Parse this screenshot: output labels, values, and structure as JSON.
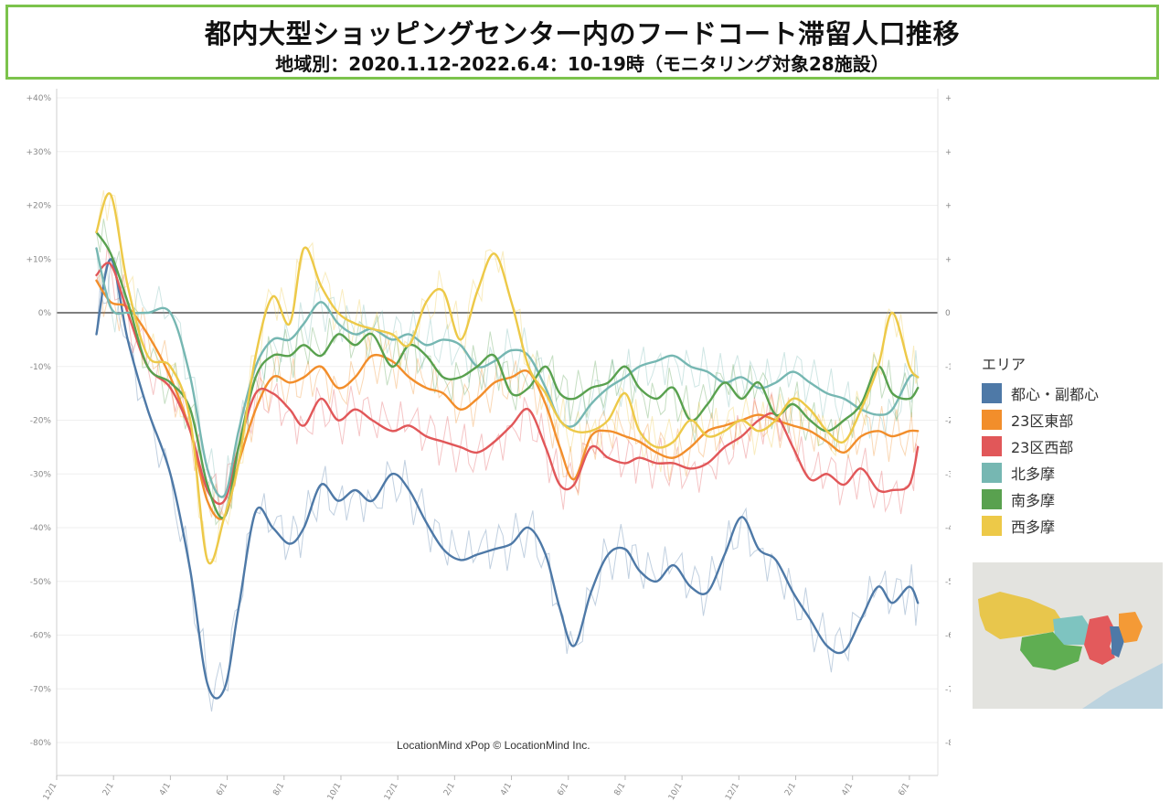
{
  "header": {
    "title": "都内大型ショッピングセンター内のフードコート滞留人口推移",
    "subtitle": "地域別：2020.1.12-2022.6.4：10-19時（モニタリング対象28施設）"
  },
  "credit": "LocationMind xPop © LocationMind Inc.",
  "legend": {
    "title": "エリア",
    "items": [
      {
        "label": "都心・副都心",
        "color": "#4e79a7"
      },
      {
        "label": "23区東部",
        "color": "#f28e2b"
      },
      {
        "label": "23区西部",
        "color": "#e15759"
      },
      {
        "label": "北多摩",
        "color": "#76b7b2"
      },
      {
        "label": "南多摩",
        "color": "#59a14f"
      },
      {
        "label": "西多摩",
        "color": "#edc948"
      }
    ]
  },
  "chart_data": {
    "type": "line",
    "ylim": [
      -80,
      40
    ],
    "y_ticks": [
      "+40%",
      "+30%",
      "+20%",
      "+10%",
      "0%",
      "-10%",
      "-20%",
      "-30%",
      "-40%",
      "-50%",
      "-60%",
      "-70%",
      "-80%"
    ],
    "x_ticks": [
      "12/1",
      "2/1",
      "4/1",
      "6/1",
      "8/1",
      "10/1",
      "12/1",
      "2/1",
      "4/1",
      "6/1",
      "8/1",
      "10/1",
      "12/1",
      "2/1",
      "4/1",
      "6/1"
    ],
    "x_unit": "month index from 2019-12-01 (0 = 12/1/2019, 30 = 6/1/2022)",
    "xlim": [
      0,
      31
    ],
    "zero_line": true,
    "series": [
      {
        "name": "都心・副都心",
        "color": "#4e79a7",
        "points": [
          [
            1.4,
            -4
          ],
          [
            1.9,
            10
          ],
          [
            2.5,
            -5
          ],
          [
            3.2,
            -18
          ],
          [
            4.0,
            -30
          ],
          [
            4.7,
            -48
          ],
          [
            5.3,
            -69
          ],
          [
            5.9,
            -70
          ],
          [
            6.4,
            -55
          ],
          [
            7.0,
            -37
          ],
          [
            7.6,
            -40
          ],
          [
            8.2,
            -43
          ],
          [
            8.7,
            -40
          ],
          [
            9.3,
            -32
          ],
          [
            9.9,
            -35
          ],
          [
            10.5,
            -33
          ],
          [
            11.1,
            -35
          ],
          [
            11.8,
            -30
          ],
          [
            12.4,
            -33
          ],
          [
            13.0,
            -39
          ],
          [
            13.6,
            -44
          ],
          [
            14.2,
            -46
          ],
          [
            14.8,
            -45
          ],
          [
            15.4,
            -44
          ],
          [
            16.0,
            -43
          ],
          [
            16.6,
            -40
          ],
          [
            17.2,
            -45
          ],
          [
            17.7,
            -55
          ],
          [
            18.2,
            -62
          ],
          [
            18.8,
            -52
          ],
          [
            19.4,
            -45
          ],
          [
            20.0,
            -44
          ],
          [
            20.5,
            -48
          ],
          [
            21.1,
            -50
          ],
          [
            21.7,
            -47
          ],
          [
            22.3,
            -51
          ],
          [
            22.9,
            -52
          ],
          [
            23.5,
            -45
          ],
          [
            24.1,
            -38
          ],
          [
            24.7,
            -44
          ],
          [
            25.3,
            -46
          ],
          [
            25.9,
            -52
          ],
          [
            26.5,
            -57
          ],
          [
            27.1,
            -62
          ],
          [
            27.7,
            -63
          ],
          [
            28.3,
            -57
          ],
          [
            28.9,
            -51
          ],
          [
            29.4,
            -54
          ],
          [
            30.0,
            -51
          ],
          [
            30.3,
            -54
          ]
        ]
      },
      {
        "name": "23区東部",
        "color": "#f28e2b",
        "points": [
          [
            1.4,
            6
          ],
          [
            1.9,
            2
          ],
          [
            2.5,
            1
          ],
          [
            3.2,
            -4
          ],
          [
            4.0,
            -12
          ],
          [
            4.7,
            -22
          ],
          [
            5.3,
            -35
          ],
          [
            5.9,
            -38
          ],
          [
            6.4,
            -28
          ],
          [
            7.0,
            -18
          ],
          [
            7.6,
            -12
          ],
          [
            8.2,
            -13
          ],
          [
            8.7,
            -12
          ],
          [
            9.3,
            -10
          ],
          [
            9.9,
            -14
          ],
          [
            10.5,
            -12
          ],
          [
            11.1,
            -8
          ],
          [
            11.8,
            -9
          ],
          [
            12.4,
            -12
          ],
          [
            13.0,
            -14
          ],
          [
            13.6,
            -15
          ],
          [
            14.2,
            -18
          ],
          [
            14.8,
            -16
          ],
          [
            15.4,
            -13
          ],
          [
            16.0,
            -12
          ],
          [
            16.6,
            -11
          ],
          [
            17.2,
            -17
          ],
          [
            17.7,
            -25
          ],
          [
            18.2,
            -31
          ],
          [
            18.8,
            -23
          ],
          [
            19.4,
            -22
          ],
          [
            20.0,
            -23
          ],
          [
            20.5,
            -24
          ],
          [
            21.1,
            -26
          ],
          [
            21.7,
            -27
          ],
          [
            22.3,
            -25
          ],
          [
            22.9,
            -22
          ],
          [
            23.5,
            -21
          ],
          [
            24.1,
            -20
          ],
          [
            24.7,
            -19
          ],
          [
            25.3,
            -20
          ],
          [
            25.9,
            -21
          ],
          [
            26.5,
            -22
          ],
          [
            27.1,
            -24
          ],
          [
            27.7,
            -26
          ],
          [
            28.3,
            -23
          ],
          [
            28.9,
            -22
          ],
          [
            29.4,
            -23
          ],
          [
            30.0,
            -22
          ],
          [
            30.3,
            -22
          ]
        ]
      },
      {
        "name": "23区西部",
        "color": "#e15759",
        "points": [
          [
            1.4,
            7
          ],
          [
            1.9,
            9
          ],
          [
            2.5,
            0
          ],
          [
            3.2,
            -10
          ],
          [
            4.0,
            -14
          ],
          [
            4.7,
            -22
          ],
          [
            5.3,
            -33
          ],
          [
            5.9,
            -35
          ],
          [
            6.4,
            -25
          ],
          [
            7.0,
            -15
          ],
          [
            7.6,
            -15
          ],
          [
            8.2,
            -18
          ],
          [
            8.7,
            -21
          ],
          [
            9.3,
            -16
          ],
          [
            9.9,
            -20
          ],
          [
            10.5,
            -18
          ],
          [
            11.1,
            -20
          ],
          [
            11.8,
            -22
          ],
          [
            12.4,
            -21
          ],
          [
            13.0,
            -23
          ],
          [
            13.6,
            -24
          ],
          [
            14.2,
            -25
          ],
          [
            14.8,
            -26
          ],
          [
            15.4,
            -24
          ],
          [
            16.0,
            -21
          ],
          [
            16.6,
            -18
          ],
          [
            17.2,
            -25
          ],
          [
            17.7,
            -32
          ],
          [
            18.2,
            -32
          ],
          [
            18.8,
            -25
          ],
          [
            19.4,
            -27
          ],
          [
            20.0,
            -28
          ],
          [
            20.5,
            -27
          ],
          [
            21.1,
            -28
          ],
          [
            21.7,
            -28
          ],
          [
            22.3,
            -29
          ],
          [
            22.9,
            -28
          ],
          [
            23.5,
            -25
          ],
          [
            24.1,
            -23
          ],
          [
            24.7,
            -20
          ],
          [
            25.3,
            -19
          ],
          [
            25.9,
            -25
          ],
          [
            26.5,
            -31
          ],
          [
            27.1,
            -30
          ],
          [
            27.7,
            -32
          ],
          [
            28.3,
            -29
          ],
          [
            28.9,
            -33
          ],
          [
            29.4,
            -33
          ],
          [
            30.0,
            -32
          ],
          [
            30.3,
            -25
          ]
        ]
      },
      {
        "name": "北多摩",
        "color": "#76b7b2",
        "points": [
          [
            1.4,
            12
          ],
          [
            1.9,
            1
          ],
          [
            2.5,
            0
          ],
          [
            3.2,
            0
          ],
          [
            4.0,
            0
          ],
          [
            4.7,
            -12
          ],
          [
            5.3,
            -29
          ],
          [
            5.9,
            -34
          ],
          [
            6.4,
            -22
          ],
          [
            7.0,
            -10
          ],
          [
            7.6,
            -5
          ],
          [
            8.2,
            -5
          ],
          [
            8.7,
            -2
          ],
          [
            9.3,
            2
          ],
          [
            9.9,
            -2
          ],
          [
            10.5,
            -4
          ],
          [
            11.1,
            -3
          ],
          [
            11.8,
            -5
          ],
          [
            12.4,
            -4
          ],
          [
            13.0,
            -6
          ],
          [
            13.6,
            -5
          ],
          [
            14.2,
            -6
          ],
          [
            14.8,
            -10
          ],
          [
            15.4,
            -9
          ],
          [
            16.0,
            -7
          ],
          [
            16.6,
            -8
          ],
          [
            17.2,
            -14
          ],
          [
            17.7,
            -20
          ],
          [
            18.2,
            -21
          ],
          [
            18.8,
            -17
          ],
          [
            19.4,
            -14
          ],
          [
            20.0,
            -12
          ],
          [
            20.5,
            -10
          ],
          [
            21.1,
            -9
          ],
          [
            21.7,
            -8
          ],
          [
            22.3,
            -10
          ],
          [
            22.9,
            -11
          ],
          [
            23.5,
            -13
          ],
          [
            24.1,
            -12
          ],
          [
            24.7,
            -14
          ],
          [
            25.3,
            -13
          ],
          [
            25.9,
            -11
          ],
          [
            26.5,
            -13
          ],
          [
            27.1,
            -15
          ],
          [
            27.7,
            -16
          ],
          [
            28.3,
            -18
          ],
          [
            28.9,
            -19
          ],
          [
            29.4,
            -18
          ],
          [
            30.0,
            -12
          ],
          [
            30.3,
            -12
          ]
        ]
      },
      {
        "name": "南多摩",
        "color": "#59a14f",
        "points": [
          [
            1.4,
            15
          ],
          [
            1.9,
            11
          ],
          [
            2.5,
            2
          ],
          [
            3.2,
            -10
          ],
          [
            4.0,
            -13
          ],
          [
            4.7,
            -18
          ],
          [
            5.3,
            -32
          ],
          [
            5.9,
            -38
          ],
          [
            6.4,
            -25
          ],
          [
            7.0,
            -12
          ],
          [
            7.6,
            -8
          ],
          [
            8.2,
            -8
          ],
          [
            8.7,
            -6
          ],
          [
            9.3,
            -8
          ],
          [
            9.9,
            -4
          ],
          [
            10.5,
            -6
          ],
          [
            11.1,
            -4
          ],
          [
            11.8,
            -10
          ],
          [
            12.4,
            -6
          ],
          [
            13.0,
            -8
          ],
          [
            13.6,
            -12
          ],
          [
            14.2,
            -12
          ],
          [
            14.8,
            -10
          ],
          [
            15.4,
            -8
          ],
          [
            16.0,
            -15
          ],
          [
            16.6,
            -14
          ],
          [
            17.2,
            -10
          ],
          [
            17.7,
            -15
          ],
          [
            18.2,
            -16
          ],
          [
            18.8,
            -14
          ],
          [
            19.4,
            -13
          ],
          [
            20.0,
            -10
          ],
          [
            20.5,
            -14
          ],
          [
            21.1,
            -16
          ],
          [
            21.7,
            -14
          ],
          [
            22.3,
            -20
          ],
          [
            22.9,
            -17
          ],
          [
            23.5,
            -13
          ],
          [
            24.1,
            -16
          ],
          [
            24.7,
            -13
          ],
          [
            25.3,
            -19
          ],
          [
            25.9,
            -17
          ],
          [
            26.5,
            -20
          ],
          [
            27.1,
            -22
          ],
          [
            27.7,
            -20
          ],
          [
            28.3,
            -17
          ],
          [
            28.9,
            -10
          ],
          [
            29.4,
            -15
          ],
          [
            30.0,
            -16
          ],
          [
            30.3,
            -14
          ]
        ]
      },
      {
        "name": "西多摩",
        "color": "#edc948",
        "points": [
          [
            1.4,
            15
          ],
          [
            1.9,
            22
          ],
          [
            2.5,
            5
          ],
          [
            3.2,
            -8
          ],
          [
            4.0,
            -10
          ],
          [
            4.7,
            -20
          ],
          [
            5.3,
            -46
          ],
          [
            5.9,
            -38
          ],
          [
            6.4,
            -28
          ],
          [
            7.0,
            -8
          ],
          [
            7.6,
            3
          ],
          [
            8.2,
            -2
          ],
          [
            8.7,
            12
          ],
          [
            9.3,
            5
          ],
          [
            9.9,
            0
          ],
          [
            10.5,
            -2
          ],
          [
            11.1,
            -3
          ],
          [
            11.8,
            -4
          ],
          [
            12.4,
            -6
          ],
          [
            13.0,
            2
          ],
          [
            13.6,
            4
          ],
          [
            14.2,
            -5
          ],
          [
            14.8,
            4
          ],
          [
            15.4,
            11
          ],
          [
            16.0,
            2
          ],
          [
            16.6,
            -10
          ],
          [
            17.2,
            -15
          ],
          [
            17.7,
            -20
          ],
          [
            18.2,
            -22
          ],
          [
            18.8,
            -22
          ],
          [
            19.4,
            -20
          ],
          [
            20.0,
            -15
          ],
          [
            20.5,
            -22
          ],
          [
            21.1,
            -25
          ],
          [
            21.7,
            -24
          ],
          [
            22.3,
            -20
          ],
          [
            22.9,
            -23
          ],
          [
            23.5,
            -22
          ],
          [
            24.1,
            -20
          ],
          [
            24.7,
            -22
          ],
          [
            25.3,
            -20
          ],
          [
            25.9,
            -16
          ],
          [
            26.5,
            -18
          ],
          [
            27.1,
            -22
          ],
          [
            27.7,
            -24
          ],
          [
            28.3,
            -18
          ],
          [
            28.9,
            -10
          ],
          [
            29.4,
            0
          ],
          [
            30.0,
            -10
          ],
          [
            30.3,
            -12
          ]
        ]
      }
    ]
  }
}
